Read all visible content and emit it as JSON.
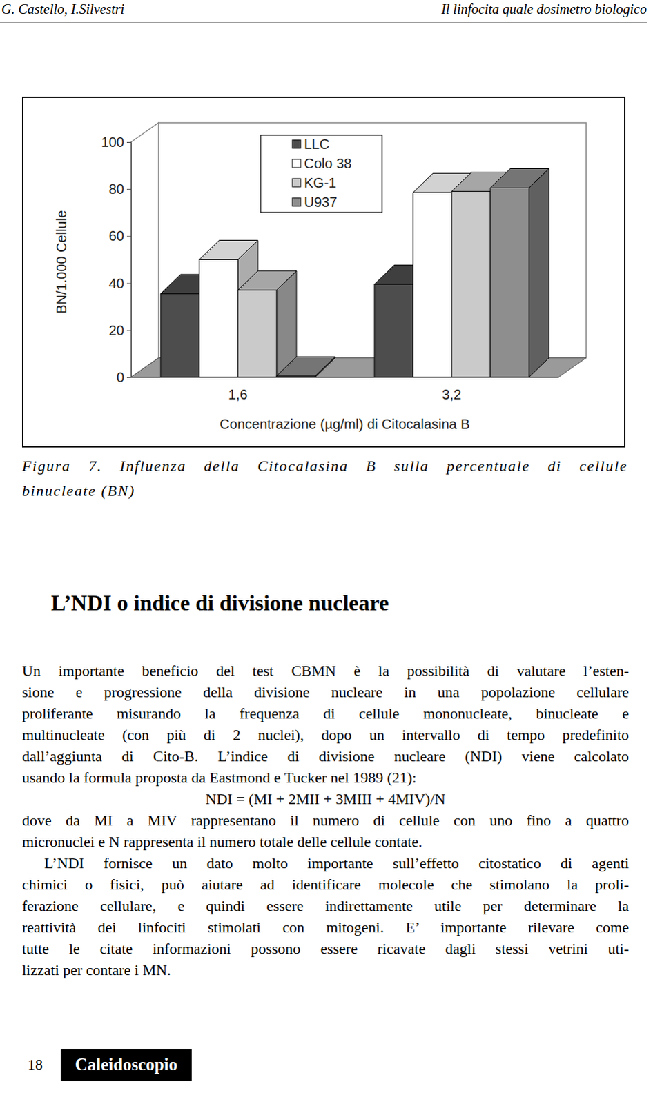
{
  "header": {
    "left": "G. Castello, I.Silvestri",
    "right": "Il linfocita quale dosimetro biologico"
  },
  "chart_data": {
    "type": "bar",
    "categories": [
      "1,6",
      "3,2"
    ],
    "series": [
      {
        "name": "LLC",
        "color": "#4d4d4d",
        "values": [
          35.5,
          39.5
        ]
      },
      {
        "name": "Colo 38",
        "color": "#ffffff",
        "values": [
          50,
          78.5
        ]
      },
      {
        "name": "KG-1",
        "color": "#cacaca",
        "values": [
          37,
          79
        ]
      },
      {
        "name": "U937",
        "color": "#8e8e8e",
        "values": [
          0.5,
          80.5
        ]
      }
    ],
    "ylim": [
      0,
      100
    ],
    "yticks": [
      0,
      20,
      40,
      60,
      80,
      100
    ],
    "ylabel": "BN/1.000 Cellule",
    "xlabel": "Concentrazione (µg/ml) di Citocalasina B",
    "legend": "top",
    "grid": false
  },
  "caption": {
    "lines": [
      "Figura 7. Influenza della Citocalasina B sulla percentuale di cellule",
      "binucleate (BN)"
    ]
  },
  "section": {
    "title": "L’NDI o indice di divisione nucleare",
    "body": [
      {
        "lines": [
          "Un importante beneficio del test CBMN è la possibilità di valutare l’esten-",
          "sione e progressione della divisione nucleare in una popolazione cellulare",
          "proliferante misurando la frequenza di cellule mononucleate, binucleate e",
          "multinucleate (con più di 2 nuclei), dopo un intervallo di tempo predefinito",
          "dall’aggiunta di Cito-B. L’indice di divisione nucleare (NDI) viene calcolato",
          "usando la formula proposta da Eastmond e Tucker nel 1989 (21):"
        ]
      },
      {
        "formula": "NDI = (MI + 2MII + 3MIII + 4MIV)/N"
      },
      {
        "lines": [
          "dove da MI a MIV rappresentano il numero di cellule con uno fino a quattro",
          "micronuclei e N rappresenta il numero totale delle cellule contate."
        ]
      },
      {
        "lines": [
          "L’NDI fornisce un dato molto importante sull’effetto citostatico di agenti",
          "chimici o fisici, può aiutare ad identificare molecole che stimolano la proli-",
          "ferazione cellulare, e quindi essere indirettamente utile per determinare la",
          "reattività dei linfociti stimolati con mitogeni. E’ importante rilevare come",
          "tutte le citate informazioni possono essere ricavate dagli stessi vetrini uti-",
          "lizzati per contare i MN."
        ]
      }
    ]
  },
  "footer": {
    "page": "18",
    "series": "Caleidoscopio"
  }
}
